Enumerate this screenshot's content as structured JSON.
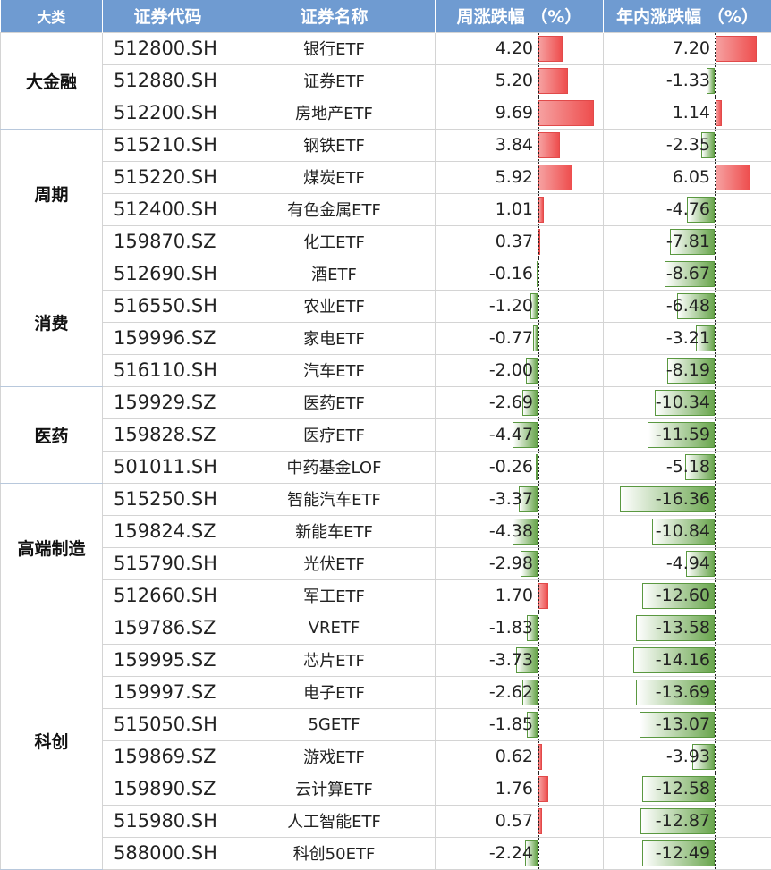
{
  "header": {
    "category": "大类",
    "code": "证券代码",
    "name": "证券名称",
    "week": "周涨跌幅 （%）",
    "ytd": "年内涨跌幅 （%）"
  },
  "colors": {
    "header_bg": "#6f9bd1",
    "positive": "#ee4e4e",
    "negative": "#6aa64e"
  },
  "chart_data": {
    "type": "table",
    "columns": [
      "大类",
      "证券代码",
      "证券名称",
      "周涨跌幅 （%）",
      "年内涨跌幅 （%）"
    ],
    "data_bars": {
      "week_range": [
        -4.47,
        9.69
      ],
      "ytd_range": [
        -16.36,
        7.2
      ]
    },
    "groups": [
      {
        "name": "大金融",
        "rows": [
          {
            "code": "512800.SH",
            "name": "银行ETF",
            "week": "4.20",
            "ytd": "7.20"
          },
          {
            "code": "512880.SH",
            "name": "证券ETF",
            "week": "5.20",
            "ytd": "-1.33"
          },
          {
            "code": "512200.SH",
            "name": "房地产ETF",
            "week": "9.69",
            "ytd": "1.14"
          }
        ]
      },
      {
        "name": "周期",
        "rows": [
          {
            "code": "515210.SH",
            "name": "钢铁ETF",
            "week": "3.84",
            "ytd": "-2.35"
          },
          {
            "code": "515220.SH",
            "name": "煤炭ETF",
            "week": "5.92",
            "ytd": "6.05"
          },
          {
            "code": "512400.SH",
            "name": "有色金属ETF",
            "week": "1.01",
            "ytd": "-4.76"
          },
          {
            "code": "159870.SZ",
            "name": "化工ETF",
            "week": "0.37",
            "ytd": "-7.81"
          }
        ]
      },
      {
        "name": "消费",
        "rows": [
          {
            "code": "512690.SH",
            "name": "酒ETF",
            "week": "-0.16",
            "ytd": "-8.67"
          },
          {
            "code": "516550.SH",
            "name": "农业ETF",
            "week": "-1.20",
            "ytd": "-6.48"
          },
          {
            "code": "159996.SZ",
            "name": "家电ETF",
            "week": "-0.77",
            "ytd": "-3.21"
          },
          {
            "code": "516110.SH",
            "name": "汽车ETF",
            "week": "-2.00",
            "ytd": "-8.19"
          }
        ]
      },
      {
        "name": "医药",
        "rows": [
          {
            "code": "159929.SZ",
            "name": "医药ETF",
            "week": "-2.69",
            "ytd": "-10.34"
          },
          {
            "code": "159828.SZ",
            "name": "医疗ETF",
            "week": "-4.47",
            "ytd": "-11.59"
          },
          {
            "code": "501011.SH",
            "name": "中药基金LOF",
            "week": "-0.26",
            "ytd": "-5.18"
          }
        ]
      },
      {
        "name": "高端制造",
        "rows": [
          {
            "code": "515250.SH",
            "name": "智能汽车ETF",
            "week": "-3.37",
            "ytd": "-16.36"
          },
          {
            "code": "159824.SZ",
            "name": "新能车ETF",
            "week": "-4.38",
            "ytd": "-10.84"
          },
          {
            "code": "515790.SH",
            "name": "光伏ETF",
            "week": "-2.98",
            "ytd": "-4.94"
          },
          {
            "code": "512660.SH",
            "name": "军工ETF",
            "week": "1.70",
            "ytd": "-12.60"
          }
        ]
      },
      {
        "name": "科创",
        "rows": [
          {
            "code": "159786.SZ",
            "name": "VRETF",
            "week": "-1.83",
            "ytd": "-13.58"
          },
          {
            "code": "159995.SZ",
            "name": "芯片ETF",
            "week": "-3.73",
            "ytd": "-14.16"
          },
          {
            "code": "159997.SZ",
            "name": "电子ETF",
            "week": "-2.62",
            "ytd": "-13.69"
          },
          {
            "code": "515050.SH",
            "name": "5GETF",
            "week": "-1.85",
            "ytd": "-13.07"
          },
          {
            "code": "159869.SZ",
            "name": "游戏ETF",
            "week": "0.62",
            "ytd": "-3.93"
          },
          {
            "code": "159890.SZ",
            "name": "云计算ETF",
            "week": "1.76",
            "ytd": "-12.58"
          },
          {
            "code": "515980.SH",
            "name": "人工智能ETF",
            "week": "0.57",
            "ytd": "-12.87"
          },
          {
            "code": "588000.SH",
            "name": "科创50ETF",
            "week": "-2.24",
            "ytd": "-12.49"
          }
        ]
      }
    ]
  }
}
